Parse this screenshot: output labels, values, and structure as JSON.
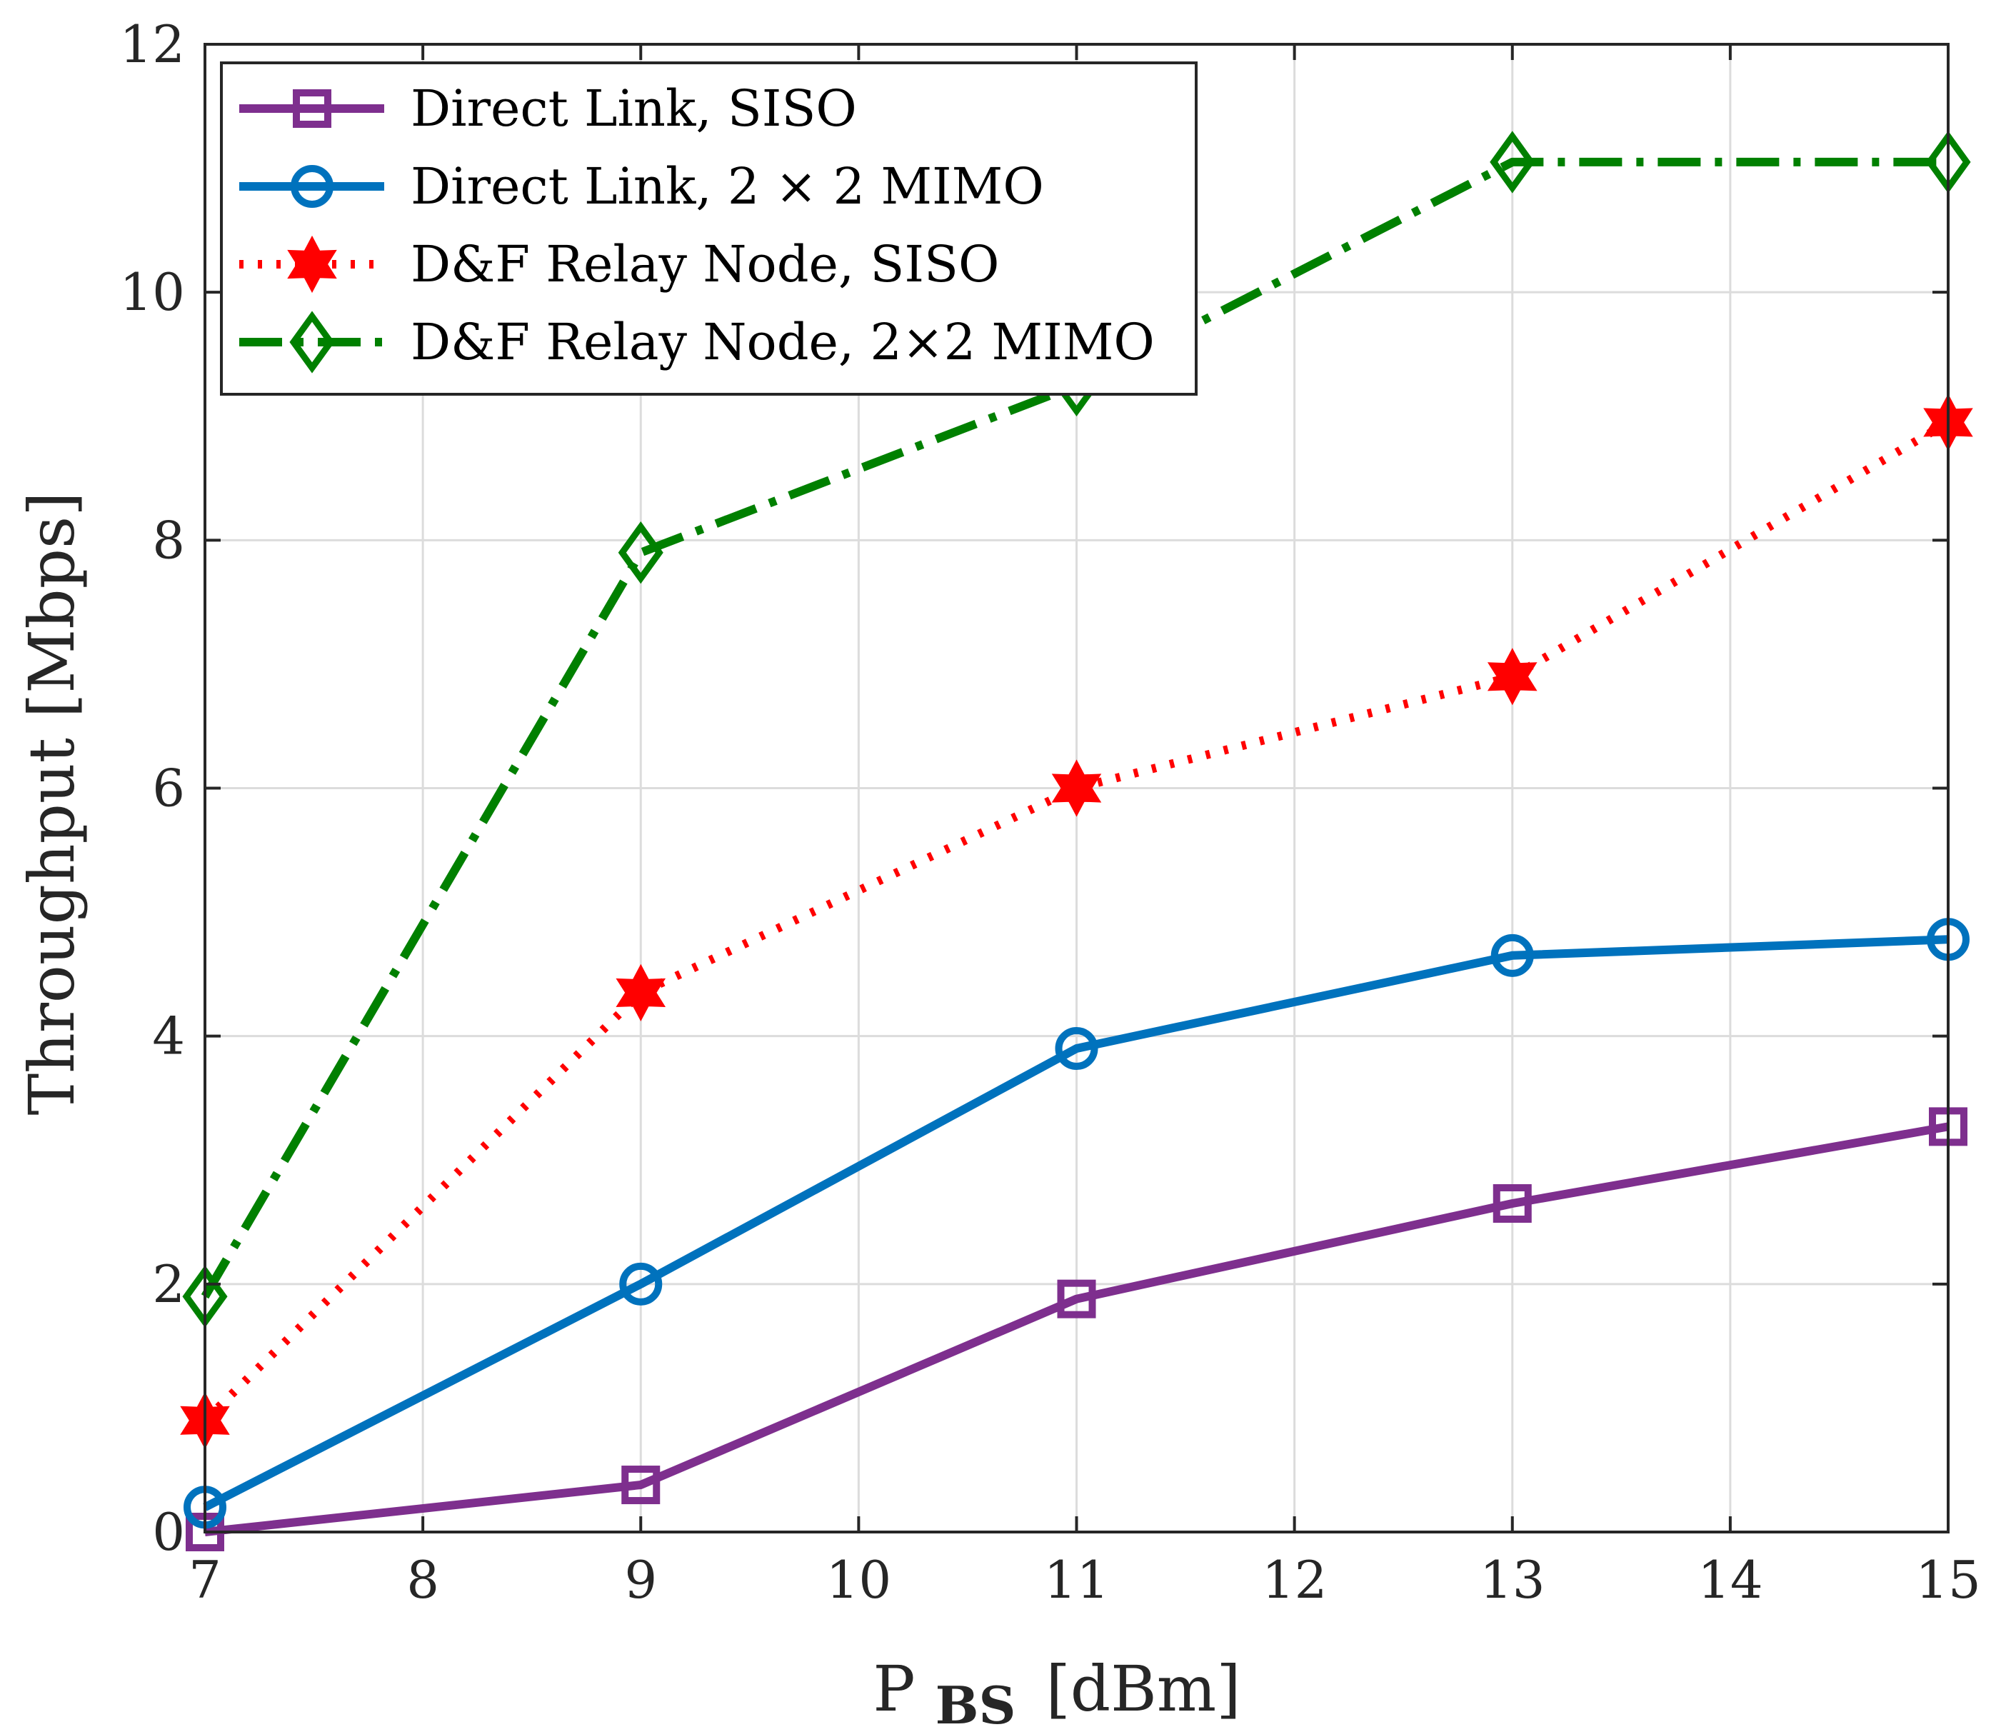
{
  "chart_data": {
    "type": "line",
    "title": "",
    "xlabel_main": "P",
    "xlabel_sub": "BS",
    "xlabel_unit": "[dBm]",
    "ylabel": "Throughput [Mbps]",
    "xlim": [
      7,
      15
    ],
    "ylim": [
      0,
      12
    ],
    "xticks": [
      "7",
      "8",
      "9",
      "10",
      "11",
      "12",
      "13",
      "14",
      "15"
    ],
    "yticks": [
      "0",
      "2",
      "4",
      "6",
      "8",
      "10",
      "12"
    ],
    "grid": true,
    "legend_position": "top-left",
    "x": [
      7,
      9,
      11,
      13,
      15
    ],
    "series": [
      {
        "name": "Direct Link, SISO",
        "values": [
          0.0,
          0.38,
          1.88,
          2.65,
          3.27
        ],
        "color": "#7e2f8e",
        "line_style": "solid",
        "marker": "square"
      },
      {
        "name": "Direct Link, 2 × 2 MIMO",
        "values": [
          0.2,
          2.0,
          3.9,
          4.65,
          4.78
        ],
        "color": "#0072bd",
        "line_style": "solid",
        "marker": "circle"
      },
      {
        "name": "D&F Relay Node, SISO",
        "values": [
          0.9,
          4.35,
          6.0,
          6.9,
          8.95
        ],
        "color": "#ff0000",
        "line_style": "dotted",
        "marker": "hexagram"
      },
      {
        "name": "D&F Relay Node, 2×2 MIMO",
        "values": [
          1.9,
          7.9,
          9.25,
          11.05,
          11.05
        ],
        "color": "#008000",
        "line_style": "dashdot",
        "marker": "diamond"
      }
    ]
  }
}
